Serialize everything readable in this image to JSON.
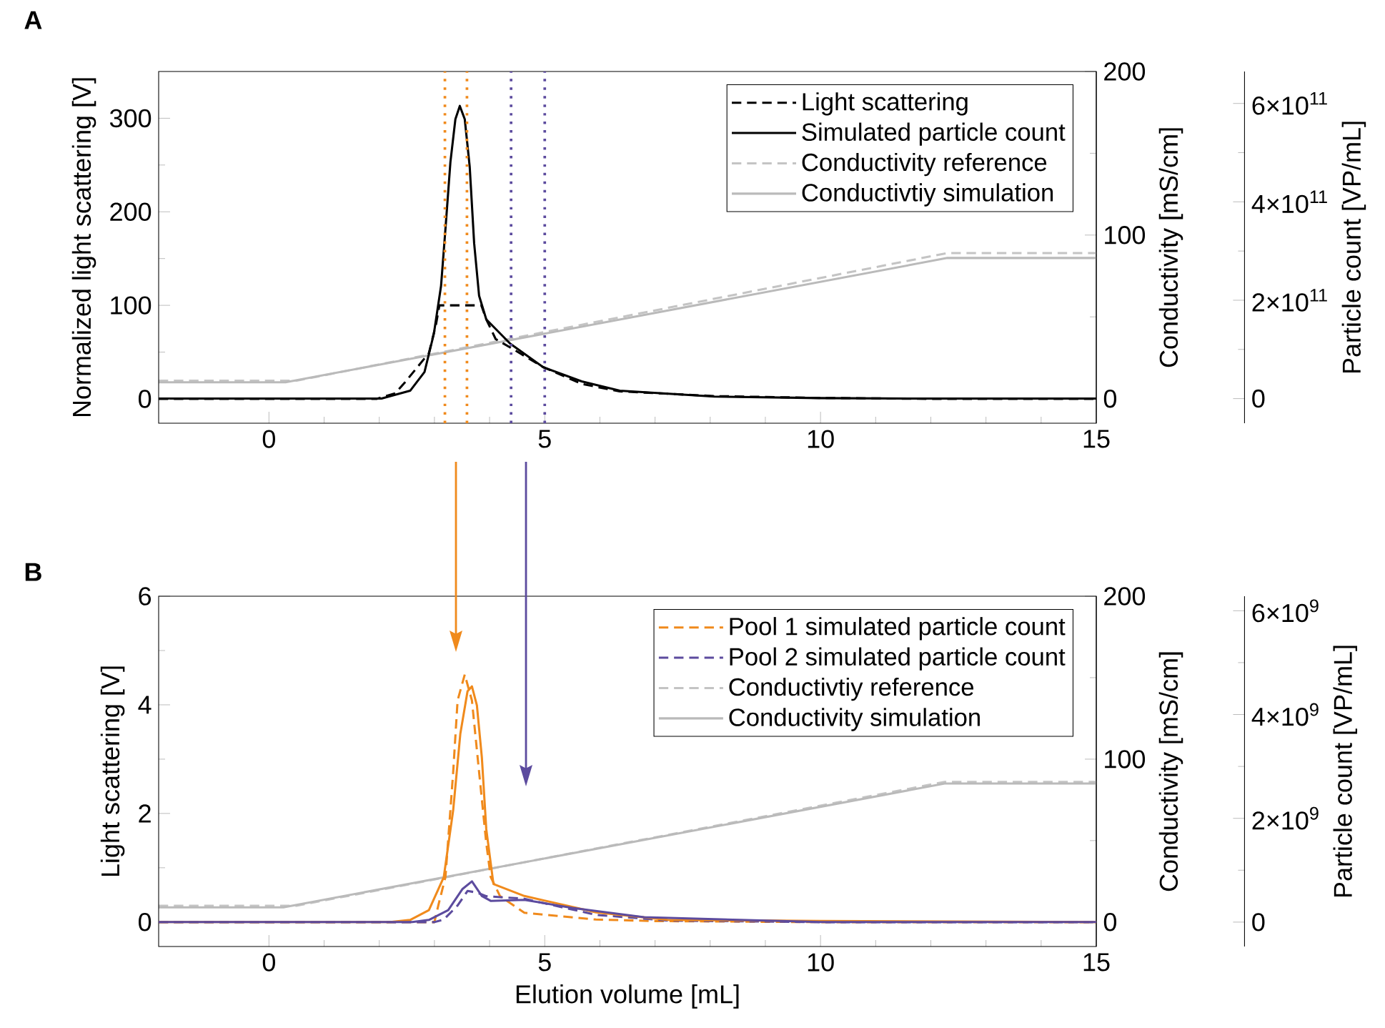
{
  "chart_data": [
    {
      "type": "line",
      "title": "A",
      "ylabel": "Normalized light scattering [V]",
      "y2label": "Conductivity [mS/cm]",
      "y3label": "Particle count [VP/mL]",
      "xlim": [
        -2,
        15
      ],
      "xticks": [
        0,
        5,
        10,
        15
      ],
      "ylim": [
        -26,
        350
      ],
      "yticks": [
        0,
        100,
        200,
        300
      ],
      "y2lim": [
        -15,
        200
      ],
      "y2ticks": [
        0,
        100,
        200
      ],
      "y3lim": [
        -50000000000.0,
        665000000000.0
      ],
      "y3ticks": [
        0,
        {
          "value": 200000000000.0,
          "label": "2×10$^{11}$"
        },
        {
          "value": 400000000000.0,
          "label": "4×10$^{11}$"
        },
        {
          "value": 600000000000.0,
          "label": "6×10$^{11}$"
        }
      ],
      "legend": "top right",
      "ref_lines": [
        {
          "axis": "x",
          "value": 3.19,
          "color": "#f08a1c",
          "line_style": "dotted"
        },
        {
          "axis": "x",
          "value": 3.59,
          "color": "#f08a1c",
          "line_style": "dotted"
        },
        {
          "axis": "x",
          "value": 4.39,
          "color": "#5c4b9e",
          "line_style": "dotted"
        },
        {
          "axis": "x",
          "value": 5.0,
          "color": "#5c4b9e",
          "line_style": "dotted"
        }
      ],
      "series": [
        {
          "name": "Light scattering",
          "color": "#000000",
          "line_style": "dashed",
          "x": [
            -2,
            0,
            1.95,
            2.29,
            2.47,
            2.9,
            3.03,
            3.09,
            3.85,
            3.94,
            4.11,
            4.46,
            4.97,
            5.67,
            6.36,
            8.08,
            10,
            12,
            15
          ],
          "values": [
            0,
            0,
            0,
            6,
            18,
            49,
            80,
            100,
            100,
            85,
            64,
            52,
            34,
            16,
            8,
            3,
            1,
            0,
            0
          ]
        },
        {
          "name": "Simulated particle count",
          "axis": "y3",
          "color": "#000000",
          "line_style": "solid",
          "x": [
            -2,
            0.31,
            2.04,
            2.56,
            2.82,
            2.99,
            3.12,
            3.2,
            3.29,
            3.38,
            3.46,
            3.55,
            3.64,
            3.72,
            3.81,
            3.94,
            4.37,
            4.97,
            5.67,
            6.36,
            8.08,
            10,
            12,
            15
          ],
          "values": [
            0,
            0,
            0,
            16000000000.0,
            54000000000.0,
            132000000000.0,
            229000000000.0,
            345000000000.0,
            481000000000.0,
            568000000000.0,
            595000000000.0,
            568000000000.0,
            471000000000.0,
            316000000000.0,
            209000000000.0,
            161000000000.0,
            112000000000.0,
            64000000000.0,
            35000000000.0,
            16000000000.0,
            4000000000.0,
            1000000000.0,
            0,
            0
          ]
        },
        {
          "name": "Conductivity reference",
          "axis": "y2",
          "color": "#c4c4c4",
          "line_style": "dashed",
          "x": [
            -2,
            0.5,
            12.3,
            15
          ],
          "values": [
            11,
            11,
            89,
            89
          ]
        },
        {
          "name": "Conductivtiy simulation",
          "axis": "y2",
          "color": "#bababa",
          "line_style": "solid",
          "x": [
            -2,
            0.3,
            12.3,
            15
          ],
          "values": [
            10,
            10,
            86,
            86
          ]
        }
      ]
    },
    {
      "type": "line",
      "title": "B",
      "xlabel": "Elution volume [mL]",
      "ylabel": "Light scattering [V]",
      "y2label": "Conductivity [mS/cm]",
      "y3label": "Particle count [VP/mL]",
      "xlim": [
        -2,
        15
      ],
      "xticks": [
        0,
        5,
        10,
        15
      ],
      "ylim": [
        -0.45,
        6
      ],
      "yticks": [
        0,
        2,
        4,
        6
      ],
      "y2lim": [
        -15,
        200
      ],
      "y2ticks": [
        0,
        100,
        200
      ],
      "y3lim": [
        -470000000.0,
        6280000000.0
      ],
      "y3ticks": [
        0,
        {
          "value": 2000000000.0,
          "label": "2×10$^{9}$"
        },
        {
          "value": 4000000000.0,
          "label": "4×10$^{9}$"
        },
        {
          "value": 6000000000.0,
          "label": "6×10$^{9}$"
        }
      ],
      "legend": "top right",
      "series": [
        {
          "color": "#f08a1c",
          "line_style": "solid",
          "x": [
            -2,
            2.2,
            2.56,
            2.9,
            3.17,
            3.34,
            3.47,
            3.6,
            3.68,
            3.77,
            3.86,
            3.94,
            4.07,
            4.63,
            5.93,
            7.23,
            10,
            15
          ],
          "values": [
            0,
            0,
            0.04,
            0.22,
            0.83,
            2.06,
            3.47,
            4.25,
            4.34,
            3.99,
            3.03,
            1.71,
            0.7,
            0.48,
            0.18,
            0.04,
            0.02,
            0
          ]
        },
        {
          "color": "#5c4b9e",
          "line_style": "solid",
          "x": [
            -2,
            2.6,
            2.9,
            3.25,
            3.51,
            3.68,
            3.86,
            4.02,
            4.63,
            5.5,
            6.8,
            10,
            15
          ],
          "values": [
            0,
            0,
            0.04,
            0.22,
            0.61,
            0.75,
            0.48,
            0.39,
            0.41,
            0.26,
            0.09,
            0,
            0
          ]
        },
        {
          "name": "Pool 1 simulated particle count",
          "axis": "y3",
          "color": "#f08a1c",
          "line_style": "dashed",
          "x": [
            -2,
            2.8,
            3.0,
            3.07,
            3.2,
            3.34,
            3.42,
            3.55,
            3.68,
            3.81,
            3.94,
            4.02,
            4.19,
            4.63,
            5.93,
            7,
            10,
            15
          ],
          "values": [
            0,
            0,
            0,
            320000000.0,
            870000000.0,
            2890000000.0,
            4270000000.0,
            4770000000.0,
            4270000000.0,
            2890000000.0,
            1520000000.0,
            870000000.0,
            500000000.0,
            180000000.0,
            50000000.0,
            20000000.0,
            0,
            0
          ]
        },
        {
          "name": "Pool 2 simulated particle count",
          "axis": "y3",
          "color": "#5c4b9e",
          "line_style": "dashed",
          "x": [
            -2,
            3.0,
            3.17,
            3.42,
            3.6,
            3.77,
            3.94,
            4.63,
            5.93,
            7.23,
            10,
            15
          ],
          "values": [
            0,
            0,
            50000000.0,
            320000000.0,
            600000000.0,
            570000000.0,
            500000000.0,
            450000000.0,
            140000000.0,
            30000000.0,
            0,
            0
          ]
        },
        {
          "name": "Conductivtiy reference",
          "axis": "y2",
          "color": "#c4c4c4",
          "line_style": "dashed",
          "x": [
            -2,
            0.5,
            12.25,
            15
          ],
          "values": [
            10,
            10,
            86,
            86
          ]
        },
        {
          "name": "Conductivity simulation",
          "axis": "y2",
          "color": "#bababa",
          "line_style": "solid",
          "x": [
            -2,
            0.26,
            12.25,
            15
          ],
          "values": [
            9,
            9,
            85,
            85
          ]
        }
      ]
    }
  ]
}
